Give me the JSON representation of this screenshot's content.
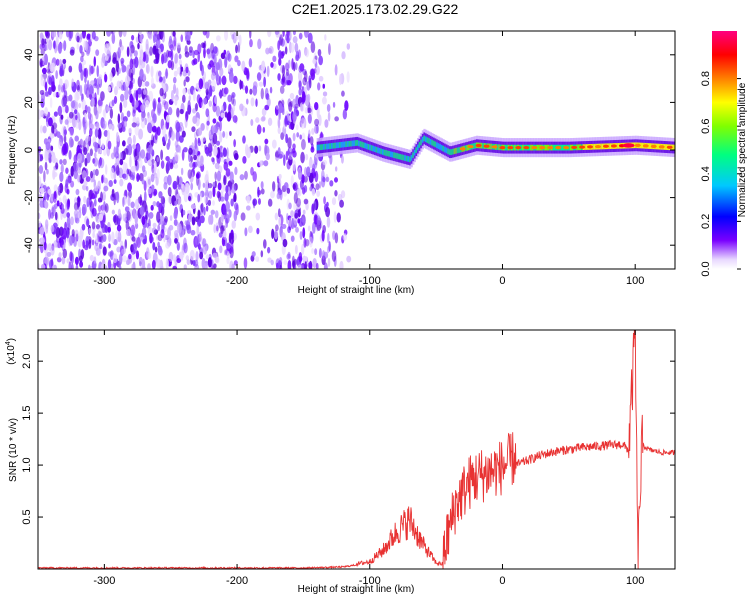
{
  "title": "C2E1.2025.173.02.29.G22",
  "chart_data": [
    {
      "type": "heatmap",
      "xlabel": "Height of straight line (km)",
      "ylabel": "Frequency (Hz)",
      "xlim": [
        -350,
        130
      ],
      "ylim": [
        -50,
        50
      ],
      "xticks": [
        -300,
        -200,
        -100,
        0,
        100
      ],
      "yticks": [
        -40,
        -20,
        0,
        20,
        40
      ],
      "colorbar": {
        "label": "Normalized spectral amplitude",
        "range": [
          0,
          1
        ],
        "ticks": [
          "0.0",
          "0.2",
          "0.4",
          "0.6",
          "0.8"
        ],
        "tick_values": [
          0.0,
          0.2,
          0.4,
          0.6,
          0.8
        ],
        "colormap": [
          "#ffffff",
          "#6a00ff",
          "#0000ff",
          "#00ffff",
          "#00ff00",
          "#ffff00",
          "#ff8000",
          "#ff0000",
          "#ff00aa"
        ]
      },
      "features": {
        "noise_region_x": [
          -350,
          -110
        ],
        "signal_centerline": [
          {
            "x": -140,
            "y": 1
          },
          {
            "x": -110,
            "y": 3
          },
          {
            "x": -90,
            "y": -1
          },
          {
            "x": -70,
            "y": -4
          },
          {
            "x": -60,
            "y": 5
          },
          {
            "x": -40,
            "y": -1
          },
          {
            "x": -20,
            "y": 2
          },
          {
            "x": 0,
            "y": 1
          },
          {
            "x": 50,
            "y": 1
          },
          {
            "x": 100,
            "y": 2
          },
          {
            "x": 130,
            "y": 1
          }
        ],
        "peak_amplitude_x": 95
      }
    },
    {
      "type": "line",
      "xlabel": "Height of straight line (km)",
      "ylabel": "SNR (10 * v/v)",
      "yscale_label": "(x10",
      "yscale_exp": "4",
      "yscale_suffix": ")",
      "xlim": [
        -350,
        130
      ],
      "ylim": [
        0,
        2.3
      ],
      "xticks": [
        -300,
        -200,
        -100,
        0,
        100
      ],
      "yticks": [
        "0.5",
        "1.0",
        "1.5",
        "2.0"
      ],
      "ytick_values": [
        0.5,
        1.0,
        1.5,
        2.0
      ],
      "line_color": "#e83232",
      "series": [
        {
          "x": [
            -350,
            -300,
            -250,
            -200,
            -150,
            -120,
            -100,
            -90,
            -80,
            -70,
            -60,
            -50,
            -45,
            -40,
            -35,
            -30,
            -25,
            -20,
            -10,
            0,
            10,
            20,
            30,
            40,
            50,
            60,
            70,
            80,
            90,
            95,
            98,
            100,
            102,
            105,
            110,
            120,
            130
          ],
          "values": [
            0.01,
            0.01,
            0.01,
            0.01,
            0.01,
            0.02,
            0.06,
            0.15,
            0.3,
            0.4,
            0.2,
            0.05,
            0.04,
            0.3,
            0.55,
            0.65,
            0.75,
            0.8,
            0.85,
            0.9,
            1.0,
            1.05,
            1.1,
            1.13,
            1.15,
            1.17,
            1.18,
            1.19,
            1.2,
            1.15,
            1.8,
            2.3,
            0.05,
            1.2,
            1.15,
            1.12,
            1.12
          ]
        }
      ]
    }
  ]
}
